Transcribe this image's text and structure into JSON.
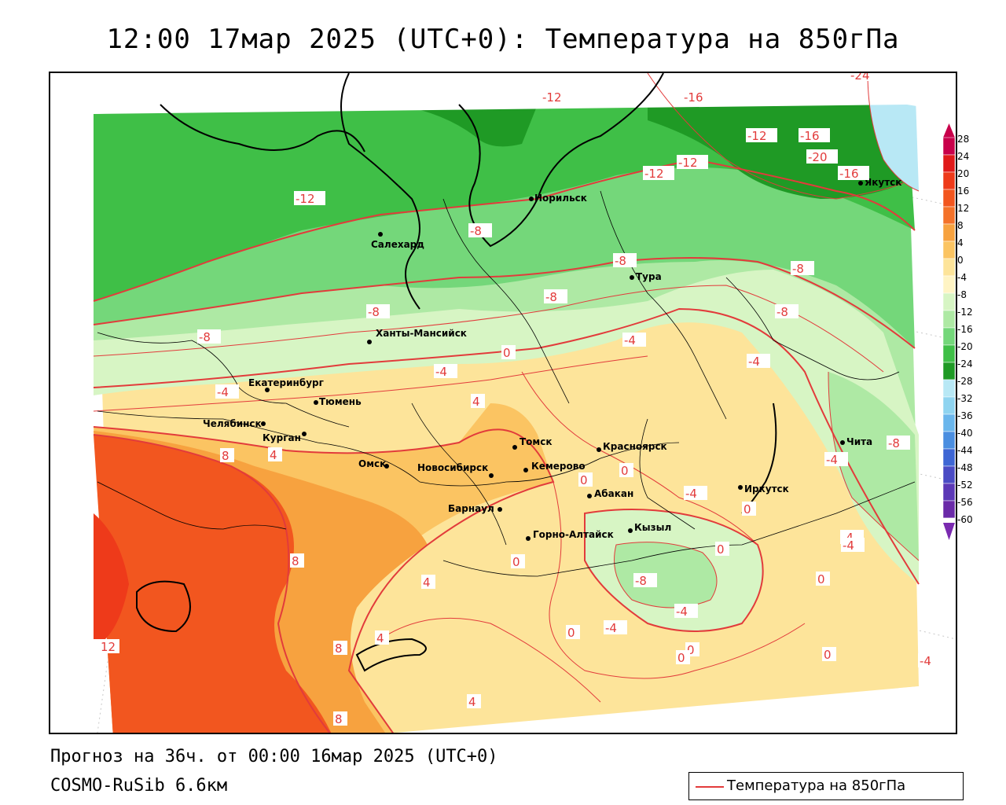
{
  "header": {
    "title": "12:00 17мар 2025 (UTC+0): Температура на 850гПа"
  },
  "footer": {
    "forecast": "Прогноз на 36ч. от 00:00 16мар 2025 (UTC+0)",
    "model": "COSMO-RuSib 6.6км"
  },
  "legend": {
    "label": "Температура на 850гПа",
    "line_color": "#e23b3b"
  },
  "colorbar": {
    "labels": [
      "28",
      "24",
      "20",
      "16",
      "12",
      "8",
      "4",
      "0",
      "-4",
      "-8",
      "-12",
      "-16",
      "-20",
      "-24",
      "-28",
      "-32",
      "-36",
      "-40",
      "-44",
      "-48",
      "-52",
      "-56",
      "-60"
    ],
    "colors": [
      "#c8004a",
      "#e01a1a",
      "#ee3a1a",
      "#f2561f",
      "#f4722a",
      "#f7a23f",
      "#fbc462",
      "#fde49a",
      "#fff4c4",
      "#d7f5c4",
      "#aee9a4",
      "#74d77a",
      "#3fbf47",
      "#1f9a25",
      "#b8e8f5",
      "#8fd4f0",
      "#6ab6ec",
      "#4a8ee0",
      "#3e66d4",
      "#4a4bc4",
      "#5b38b6",
      "#6a2aa8",
      "#ffffff"
    ]
  },
  "cities": [
    {
      "name": "Салехард"
    },
    {
      "name": "Норильск"
    },
    {
      "name": "Тура"
    },
    {
      "name": "Якутск"
    },
    {
      "name": "Ханты-Мансийск"
    },
    {
      "name": "Екатеринбург"
    },
    {
      "name": "Тюмень"
    },
    {
      "name": "Челябинск"
    },
    {
      "name": "Курган"
    },
    {
      "name": "Омск"
    },
    {
      "name": "Новосибирск"
    },
    {
      "name": "Томск"
    },
    {
      "name": "Кемерово"
    },
    {
      "name": "Красноярск"
    },
    {
      "name": "Барнаул"
    },
    {
      "name": "Абакан"
    },
    {
      "name": "Горно-Алтайск"
    },
    {
      "name": "Кызыл"
    },
    {
      "name": "Иркутск"
    },
    {
      "name": "Чита"
    }
  ],
  "isotherm_labels": [
    "-24",
    "-12",
    "-16",
    "-12",
    "-16",
    "-20",
    "-16",
    "-12",
    "-12",
    "-12",
    "-8",
    "-8",
    "-8",
    "-8",
    "-8",
    "-8",
    "-8",
    "-4",
    "-4",
    "-4",
    "-4",
    "0",
    "4",
    "4",
    "8",
    "8",
    "12",
    "8",
    "8",
    "4",
    "4",
    "4",
    "0",
    "0",
    "0",
    "-4",
    "-4",
    "-4",
    "-8",
    "-4",
    "0",
    "0",
    "0",
    "0",
    "0",
    "-4",
    "0",
    "-4",
    "-4",
    "0",
    "-8"
  ]
}
